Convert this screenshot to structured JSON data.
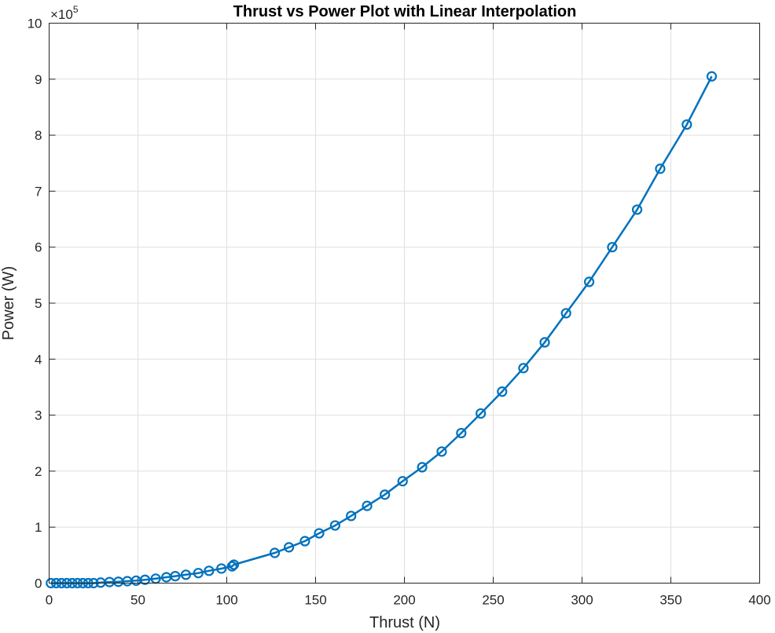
{
  "chart_data": {
    "type": "line",
    "title": "Thrust vs Power Plot with Linear Interpolation",
    "xlabel": "Thrust (N)",
    "ylabel": "Power (W)",
    "xlim": [
      0,
      400
    ],
    "ylim": [
      0,
      1000000
    ],
    "x_ticks": [
      0,
      50,
      100,
      150,
      200,
      250,
      300,
      350,
      400
    ],
    "y_ticks": [
      0,
      100000,
      200000,
      300000,
      400000,
      500000,
      600000,
      700000,
      800000,
      900000,
      1000000
    ],
    "x_tick_labels": [
      "0",
      "50",
      "100",
      "150",
      "200",
      "250",
      "300",
      "350",
      "400"
    ],
    "y_tick_labels": [
      "0",
      "1",
      "2",
      "3",
      "4",
      "5",
      "6",
      "7",
      "8",
      "9",
      "10"
    ],
    "y_exponent_base": "×10",
    "y_exponent_power": "5",
    "grid": true,
    "marker": "circle",
    "line_color": "#0072bd",
    "series": [
      {
        "x": [
          1,
          4,
          7,
          10,
          13,
          16,
          19,
          22,
          25,
          29,
          34,
          39,
          44,
          49,
          54,
          60,
          66,
          71,
          77,
          84,
          90,
          97,
          103,
          104,
          127,
          135,
          144,
          152,
          161,
          170,
          179,
          189,
          199,
          210,
          221,
          232,
          243,
          255,
          267,
          279,
          291,
          304,
          317,
          331,
          344,
          359,
          373
        ],
        "y": [
          0,
          0,
          0,
          0,
          0,
          0,
          0,
          0,
          0,
          1000,
          2000,
          2500,
          3500,
          4500,
          6000,
          8000,
          10500,
          12500,
          15000,
          18000,
          22000,
          26000,
          30000,
          33000,
          54000,
          64000,
          75000,
          89000,
          103000,
          120000,
          138000,
          158000,
          182000,
          207000,
          235000,
          268000,
          303000,
          342000,
          384000,
          430000,
          482000,
          538000,
          600000,
          667000,
          740000,
          819000,
          905000
        ]
      }
    ]
  }
}
